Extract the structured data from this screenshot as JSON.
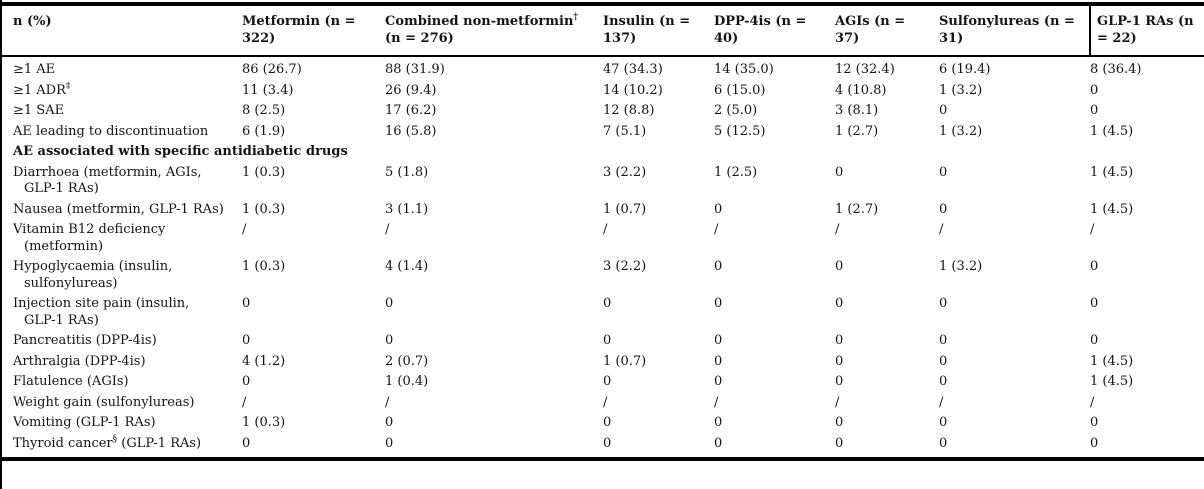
{
  "page": {
    "background": "#ffffff",
    "text_color": "#141414",
    "rule_color": "#000000"
  },
  "table": {
    "columns": [
      {
        "pre": "n (%)"
      },
      {
        "pre": "Metformin (n = 322)"
      },
      {
        "pre": "Combined non-metformin",
        "sup": "†",
        "post": " (n = 276)"
      },
      {
        "pre": "Insulin (n = 137)"
      },
      {
        "pre": "DPP-4is (n = 40)"
      },
      {
        "pre": "AGIs (n = 37)"
      },
      {
        "pre": "Sulfonylureas (n = 31)"
      },
      {
        "pre": "GLP-1 RAs (n = 22)"
      }
    ],
    "rows": [
      {
        "label": {
          "pre": "≥1 AE"
        },
        "values": [
          "86 (26.7)",
          "88 (31.9)",
          "47 (34.3)",
          "14 (35.0)",
          "12 (32.4)",
          "6 (19.4)",
          "8 (36.4)"
        ]
      },
      {
        "label": {
          "pre": "≥1 ADR",
          "sup": "‡"
        },
        "values": [
          "11 (3.4)",
          "26 (9.4)",
          "14 (10.2)",
          "6 (15.0)",
          "4 (10.8)",
          "1 (3.2)",
          "0"
        ]
      },
      {
        "label": {
          "pre": "≥1 SAE"
        },
        "values": [
          "8 (2.5)",
          "17 (6.2)",
          "12 (8.8)",
          "2 (5.0)",
          "3 (8.1)",
          "0",
          "0"
        ]
      },
      {
        "label": {
          "pre": "AE leading to discontinuation"
        },
        "values": [
          "6 (1.9)",
          "16 (5.8)",
          "7 (5.1)",
          "5 (12.5)",
          "1 (2.7)",
          "1 (3.2)",
          "1 (4.5)"
        ]
      },
      {
        "section": true,
        "label": {
          "pre": "AE associated with specific antidiabetic drugs"
        }
      },
      {
        "label": {
          "pre": "Diarrhoea (metformin, AGIs, GLP-1 RAs)"
        },
        "values": [
          "1 (0.3)",
          "5 (1.8)",
          "3 (2.2)",
          "1 (2.5)",
          "0",
          "0",
          "1 (4.5)"
        ]
      },
      {
        "label": {
          "pre": "Nausea (metformin, GLP-1 RAs)"
        },
        "values": [
          "1 (0.3)",
          "3 (1.1)",
          "1 (0.7)",
          "0",
          "1 (2.7)",
          "0",
          "1 (4.5)"
        ]
      },
      {
        "label": {
          "pre": "Vitamin B12 deficiency (metformin)"
        },
        "values": [
          "/",
          "/",
          "/",
          "/",
          "/",
          "/",
          "/"
        ]
      },
      {
        "label": {
          "pre": "Hypoglycaemia (insulin, sulfonylureas)"
        },
        "values": [
          "1 (0.3)",
          "4 (1.4)",
          "3 (2.2)",
          "0",
          "0",
          "1 (3.2)",
          "0"
        ]
      },
      {
        "label": {
          "pre": "Injection site pain (insulin, GLP-1 RAs)"
        },
        "values": [
          "0",
          "0",
          "0",
          "0",
          "0",
          "0",
          "0"
        ]
      },
      {
        "label": {
          "pre": "Pancreatitis (DPP-4is)"
        },
        "values": [
          "0",
          "0",
          "0",
          "0",
          "0",
          "0",
          "0"
        ]
      },
      {
        "label": {
          "pre": "Arthralgia (DPP-4is)"
        },
        "values": [
          "4 (1.2)",
          "2 (0.7)",
          "1 (0.7)",
          "0",
          "0",
          "0",
          "1 (4.5)"
        ]
      },
      {
        "label": {
          "pre": "Flatulence (AGIs)"
        },
        "values": [
          "0",
          "1 (0.4)",
          "0",
          "0",
          "0",
          "0",
          "1 (4.5)"
        ]
      },
      {
        "label": {
          "pre": "Weight gain (sulfonylureas)"
        },
        "values": [
          "/",
          "/",
          "/",
          "/",
          "/",
          "/",
          "/"
        ]
      },
      {
        "label": {
          "pre": "Vomiting (GLP-1 RAs)"
        },
        "values": [
          "1 (0.3)",
          "0",
          "0",
          "0",
          "0",
          "0",
          "0"
        ]
      },
      {
        "label": {
          "pre": "Thyroid cancer",
          "sup": "§",
          "post": " (GLP-1 RAs)"
        },
        "values": [
          "0",
          "0",
          "0",
          "0",
          "0",
          "0",
          "0"
        ]
      }
    ]
  }
}
